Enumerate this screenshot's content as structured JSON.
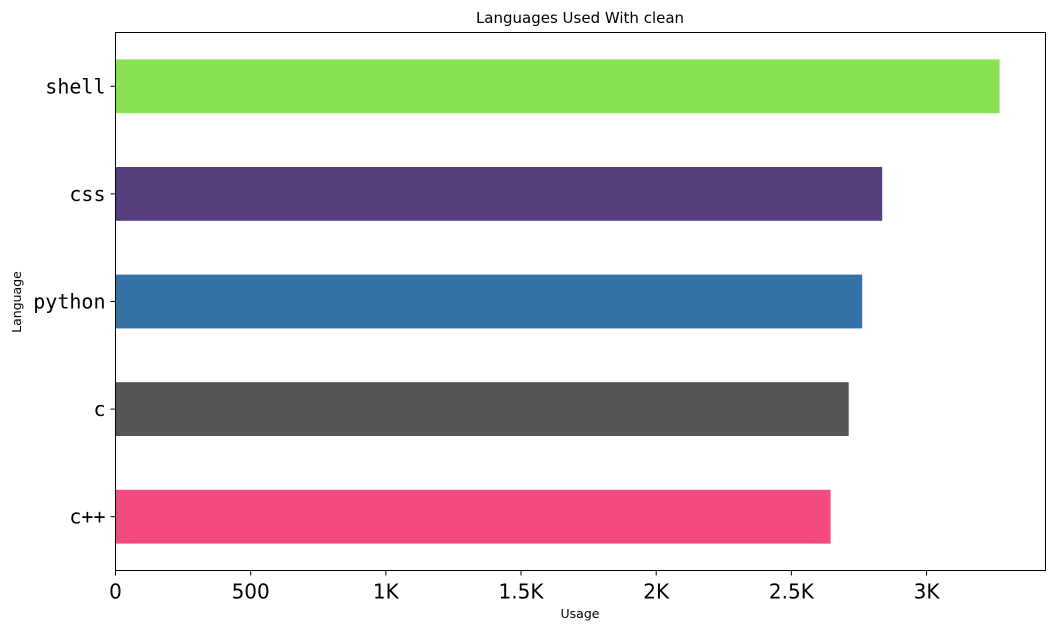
{
  "chart_data": {
    "type": "bar",
    "orientation": "horizontal",
    "title": "Languages Used With clean",
    "xlabel": "Usage",
    "ylabel": "Language",
    "categories": [
      "c++",
      "c",
      "python",
      "css",
      "shell"
    ],
    "values": [
      2645,
      2712,
      2762,
      2836,
      3270
    ],
    "colors": [
      "#f34b7d",
      "#555555",
      "#3572A5",
      "#563d7c",
      "#89e051"
    ],
    "xlim": [
      0,
      3440
    ],
    "x_ticks": [
      {
        "value": 0,
        "label": "0"
      },
      {
        "value": 500,
        "label": "500"
      },
      {
        "value": 1000,
        "label": "1K"
      },
      {
        "value": 1500,
        "label": "1.5K"
      },
      {
        "value": 2000,
        "label": "2K"
      },
      {
        "value": 2500,
        "label": "2.5K"
      },
      {
        "value": 3000,
        "label": "3K"
      }
    ],
    "grid": false,
    "legend": "none"
  }
}
